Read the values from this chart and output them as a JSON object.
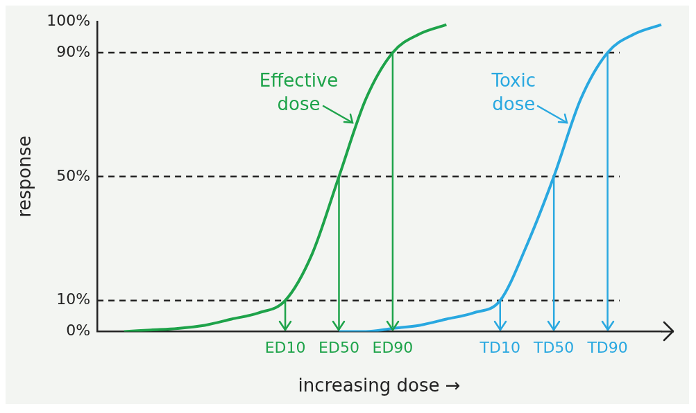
{
  "chart_data": {
    "type": "line",
    "xlabel": "increasing dose →",
    "ylabel": "response",
    "categories": [
      null,
      null,
      null,
      null,
      null,
      null,
      null,
      "ED10",
      null,
      "ED50",
      null,
      "ED90",
      null,
      null,
      null,
      "TD10",
      null,
      "TD50",
      null,
      "TD90",
      null,
      null
    ],
    "series": [
      {
        "name": "Effective dose",
        "color": "#1ea34a",
        "values": [
          null,
          0,
          0.5,
          1,
          2,
          4,
          6,
          10,
          25,
          50,
          75,
          90,
          96,
          99,
          null,
          null,
          null,
          null,
          null,
          null,
          null,
          null
        ]
      },
      {
        "name": "Toxic dose",
        "color": "#29a8e0",
        "values": [
          null,
          null,
          null,
          null,
          null,
          null,
          null,
          null,
          null,
          0,
          0,
          1,
          2,
          4,
          6,
          10,
          28,
          50,
          75,
          90,
          96,
          99
        ]
      }
    ],
    "ylim": [
      0,
      100
    ],
    "yticks": [
      {
        "value": 0,
        "label": "0%"
      },
      {
        "value": 10,
        "label": "10%"
      },
      {
        "value": 50,
        "label": "50%"
      },
      {
        "value": 90,
        "label": "90%"
      },
      {
        "value": 100,
        "label": "100%"
      }
    ],
    "ref_lines": [
      {
        "axis": "y",
        "value": 10,
        "color": "#222222",
        "line_style": "dashed"
      },
      {
        "axis": "y",
        "value": 50,
        "color": "#222222",
        "line_style": "dashed"
      },
      {
        "axis": "y",
        "value": 90,
        "color": "#222222",
        "line_style": "dashed"
      },
      {
        "axis": "x",
        "value": "ED10",
        "color": "#1ea34a"
      },
      {
        "axis": "x",
        "value": "ED50",
        "color": "#1ea34a"
      },
      {
        "axis": "x",
        "value": "ED90",
        "color": "#1ea34a"
      },
      {
        "axis": "x",
        "value": "TD10",
        "color": "#29a8e0"
      },
      {
        "axis": "x",
        "value": "TD50",
        "color": "#29a8e0"
      },
      {
        "axis": "x",
        "value": "TD90",
        "color": "#29a8e0"
      }
    ],
    "grid": false,
    "legend": false,
    "marker": "none",
    "line_style": "solid"
  }
}
